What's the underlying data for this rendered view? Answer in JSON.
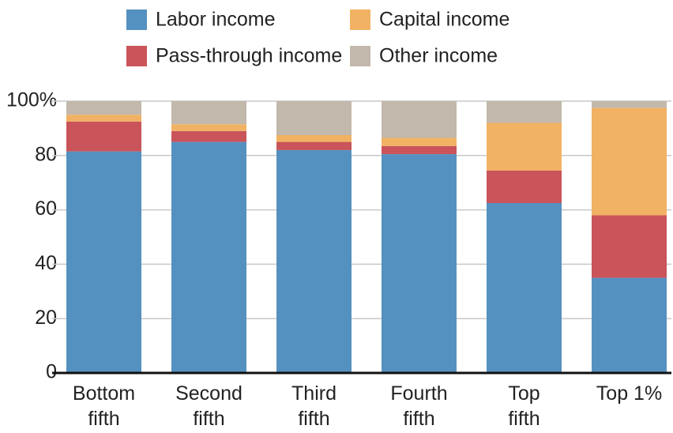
{
  "chart_data": {
    "type": "stacked_bar",
    "categories": [
      "Bottom\nfifth",
      "Second\nfifth",
      "Third\nfifth",
      "Fourth\nfifth",
      "Top\nfifth",
      "Top 1%"
    ],
    "series": [
      {
        "name": "Labor income",
        "color": "#5591c0",
        "values": [
          81.5,
          85,
          82,
          80.5,
          62.5,
          35
        ]
      },
      {
        "name": "Pass-through income",
        "color": "#c9545a",
        "values": [
          11,
          4,
          3,
          3,
          12,
          23
        ]
      },
      {
        "name": "Capital income",
        "color": "#f2b263",
        "values": [
          2.5,
          2.5,
          2.5,
          3,
          17.5,
          39.5
        ]
      },
      {
        "name": "Other income",
        "color": "#c2b8ab",
        "values": [
          5,
          8.5,
          12.5,
          13.5,
          8,
          2.5
        ]
      }
    ],
    "ylim": [
      0,
      100
    ],
    "yticks": [
      0,
      20,
      40,
      60,
      80,
      {
        "value": 100,
        "label": "100%"
      }
    ],
    "grid": true
  }
}
